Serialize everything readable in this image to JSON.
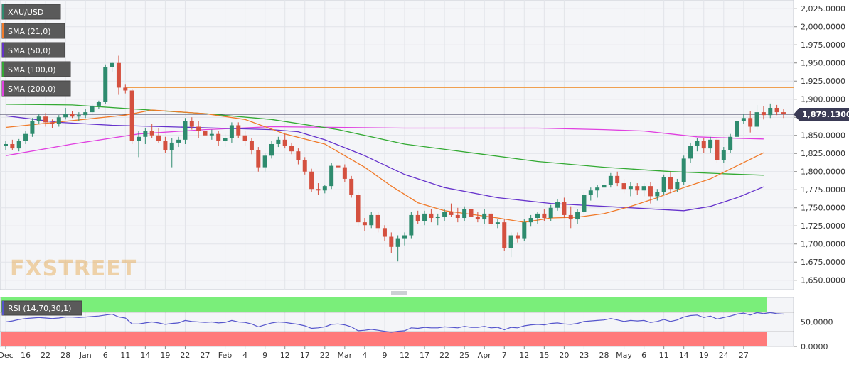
{
  "colors": {
    "up": "#2e8b6e",
    "down": "#d4503f",
    "sma21": "#f07a2a",
    "sma50": "#6633cc",
    "sma100": "#33aa33",
    "sma200": "#e040e0",
    "rsi_line": "#5555cc",
    "overbought_zone": "#7aee7a",
    "oversold_zone": "#ff7a7a",
    "resistance": "#f0a050",
    "price_line": "#333355",
    "price_tag": "#3a3a55",
    "legend_bg": "#5a5a5a"
  },
  "chart_data": [
    {
      "type": "candlestick",
      "symbol": "XAU/USD",
      "legend": [
        "XAU/USD",
        "SMA (21,0)",
        "SMA (50,0)",
        "SMA (100,0)",
        "SMA (200,0)"
      ],
      "ylim": [
        1637,
        2037
      ],
      "yticks": [
        1650,
        1675,
        1700,
        1725,
        1750,
        1775,
        1800,
        1825,
        1850,
        1875,
        1900,
        1925,
        1950,
        1975,
        2000,
        2025
      ],
      "ytick_labels": [
        "1,650.0000",
        "1,675.0000",
        "1,700.0000",
        "1,725.0000",
        "1,750.0000",
        "1,775.0000",
        "1,800.0000",
        "1,825.0000",
        "1,850.0000",
        "1,875.0000",
        "1,900.0000",
        "1,925.0000",
        "1,950.0000",
        "1,975.0000",
        "2,000.0000",
        "2,025.0000"
      ],
      "current_price": 1879.13,
      "current_price_label": "1,879.1300",
      "resistance_level": 1916,
      "candles": [
        [
          1836,
          1842,
          1830,
          1838
        ],
        [
          1838,
          1844,
          1830,
          1832
        ],
        [
          1832,
          1845,
          1828,
          1842
        ],
        [
          1842,
          1856,
          1838,
          1852
        ],
        [
          1852,
          1874,
          1848,
          1870
        ],
        [
          1870,
          1880,
          1866,
          1876
        ],
        [
          1876,
          1881,
          1862,
          1868
        ],
        [
          1868,
          1872,
          1860,
          1866
        ],
        [
          1866,
          1878,
          1862,
          1875
        ],
        [
          1875,
          1888,
          1872,
          1880
        ],
        [
          1880,
          1884,
          1874,
          1876
        ],
        [
          1876,
          1882,
          1870,
          1878
        ],
        [
          1878,
          1886,
          1874,
          1882
        ],
        [
          1882,
          1894,
          1878,
          1891
        ],
        [
          1891,
          1898,
          1886,
          1896
        ],
        [
          1896,
          1948,
          1893,
          1944
        ],
        [
          1944,
          1952,
          1938,
          1950
        ],
        [
          1950,
          1960,
          1906,
          1916
        ],
        [
          1916,
          1920,
          1908,
          1912
        ],
        [
          1912,
          1914,
          1838,
          1842
        ],
        [
          1842,
          1856,
          1820,
          1848
        ],
        [
          1848,
          1860,
          1838,
          1856
        ],
        [
          1856,
          1866,
          1846,
          1850
        ],
        [
          1850,
          1860,
          1840,
          1842
        ],
        [
          1842,
          1848,
          1826,
          1830
        ],
        [
          1830,
          1846,
          1806,
          1840
        ],
        [
          1840,
          1848,
          1834,
          1844
        ],
        [
          1844,
          1874,
          1838,
          1870
        ],
        [
          1870,
          1875,
          1858,
          1862
        ],
        [
          1862,
          1870,
          1846,
          1856
        ],
        [
          1856,
          1862,
          1846,
          1850
        ],
        [
          1850,
          1858,
          1844,
          1852
        ],
        [
          1852,
          1856,
          1836,
          1842
        ],
        [
          1842,
          1852,
          1834,
          1846
        ],
        [
          1846,
          1868,
          1840,
          1864
        ],
        [
          1864,
          1868,
          1846,
          1850
        ],
        [
          1850,
          1856,
          1836,
          1842
        ],
        [
          1842,
          1846,
          1824,
          1830
        ],
        [
          1830,
          1834,
          1800,
          1806
        ],
        [
          1806,
          1826,
          1800,
          1822
        ],
        [
          1822,
          1842,
          1818,
          1838
        ],
        [
          1838,
          1848,
          1834,
          1844
        ],
        [
          1844,
          1852,
          1832,
          1836
        ],
        [
          1836,
          1840,
          1824,
          1828
        ],
        [
          1828,
          1832,
          1810,
          1816
        ],
        [
          1816,
          1820,
          1796,
          1800
        ],
        [
          1800,
          1804,
          1772,
          1776
        ],
        [
          1776,
          1784,
          1768,
          1774
        ],
        [
          1774,
          1782,
          1770,
          1780
        ],
        [
          1780,
          1812,
          1776,
          1808
        ],
        [
          1808,
          1814,
          1800,
          1806
        ],
        [
          1806,
          1810,
          1786,
          1790
        ],
        [
          1790,
          1794,
          1764,
          1768
        ],
        [
          1768,
          1772,
          1724,
          1730
        ],
        [
          1730,
          1736,
          1718,
          1726
        ],
        [
          1726,
          1744,
          1722,
          1740
        ],
        [
          1740,
          1744,
          1716,
          1722
        ],
        [
          1722,
          1726,
          1704,
          1710
        ],
        [
          1710,
          1716,
          1688,
          1696
        ],
        [
          1696,
          1712,
          1676,
          1708
        ],
        [
          1708,
          1716,
          1698,
          1712
        ],
        [
          1712,
          1744,
          1708,
          1740
        ],
        [
          1740,
          1746,
          1728,
          1732
        ],
        [
          1732,
          1746,
          1726,
          1742
        ],
        [
          1742,
          1748,
          1730,
          1736
        ],
        [
          1736,
          1742,
          1726,
          1738
        ],
        [
          1738,
          1748,
          1732,
          1744
        ],
        [
          1744,
          1756,
          1738,
          1740
        ],
        [
          1740,
          1750,
          1730,
          1736
        ],
        [
          1736,
          1752,
          1732,
          1748
        ],
        [
          1748,
          1752,
          1734,
          1738
        ],
        [
          1738,
          1744,
          1730,
          1734
        ],
        [
          1734,
          1748,
          1728,
          1742
        ],
        [
          1742,
          1746,
          1724,
          1728
        ],
        [
          1728,
          1734,
          1722,
          1730
        ],
        [
          1730,
          1734,
          1690,
          1694
        ],
        [
          1694,
          1716,
          1682,
          1712
        ],
        [
          1712,
          1716,
          1702,
          1708
        ],
        [
          1708,
          1734,
          1704,
          1730
        ],
        [
          1730,
          1740,
          1724,
          1736
        ],
        [
          1736,
          1744,
          1728,
          1742
        ],
        [
          1742,
          1748,
          1732,
          1736
        ],
        [
          1736,
          1754,
          1732,
          1750
        ],
        [
          1750,
          1762,
          1746,
          1758
        ],
        [
          1758,
          1764,
          1736,
          1740
        ],
        [
          1740,
          1752,
          1722,
          1734
        ],
        [
          1734,
          1748,
          1728,
          1744
        ],
        [
          1744,
          1772,
          1740,
          1768
        ],
        [
          1768,
          1778,
          1760,
          1774
        ],
        [
          1774,
          1782,
          1764,
          1778
        ],
        [
          1778,
          1788,
          1770,
          1782
        ],
        [
          1782,
          1798,
          1778,
          1794
        ],
        [
          1794,
          1800,
          1780,
          1784
        ],
        [
          1784,
          1790,
          1770,
          1776
        ],
        [
          1776,
          1786,
          1766,
          1780
        ],
        [
          1780,
          1784,
          1768,
          1774
        ],
        [
          1774,
          1784,
          1766,
          1780
        ],
        [
          1780,
          1786,
          1756,
          1766
        ],
        [
          1766,
          1776,
          1760,
          1772
        ],
        [
          1772,
          1796,
          1768,
          1792
        ],
        [
          1792,
          1800,
          1770,
          1776
        ],
        [
          1776,
          1790,
          1772,
          1786
        ],
        [
          1786,
          1822,
          1782,
          1818
        ],
        [
          1818,
          1840,
          1812,
          1836
        ],
        [
          1836,
          1846,
          1828,
          1842
        ],
        [
          1842,
          1846,
          1826,
          1832
        ],
        [
          1832,
          1848,
          1826,
          1844
        ],
        [
          1844,
          1846,
          1812,
          1816
        ],
        [
          1816,
          1834,
          1812,
          1830
        ],
        [
          1830,
          1852,
          1826,
          1848
        ],
        [
          1848,
          1874,
          1844,
          1870
        ],
        [
          1870,
          1880,
          1866,
          1874
        ],
        [
          1874,
          1884,
          1854,
          1862
        ],
        [
          1862,
          1892,
          1858,
          1882
        ],
        [
          1882,
          1890,
          1872,
          1878
        ],
        [
          1878,
          1894,
          1874,
          1888
        ],
        [
          1888,
          1892,
          1878,
          1882
        ],
        [
          1882,
          1886,
          1874,
          1879.13
        ]
      ],
      "sma21": [
        [
          0,
          1861
        ],
        [
          18,
          1878
        ],
        [
          22,
          1885
        ],
        [
          30,
          1880
        ],
        [
          36,
          1872
        ],
        [
          42,
          1852
        ],
        [
          48,
          1838
        ],
        [
          54,
          1806
        ],
        [
          58,
          1780
        ],
        [
          62,
          1757
        ],
        [
          66,
          1746
        ],
        [
          70,
          1741
        ],
        [
          74,
          1736
        ],
        [
          78,
          1730
        ],
        [
          82,
          1736
        ],
        [
          86,
          1737
        ],
        [
          90,
          1742
        ],
        [
          94,
          1752
        ],
        [
          98,
          1764
        ],
        [
          102,
          1778
        ],
        [
          106,
          1790
        ],
        [
          110,
          1808
        ],
        [
          114,
          1826
        ]
      ],
      "sma50": [
        [
          0,
          1877
        ],
        [
          8,
          1868
        ],
        [
          16,
          1864
        ],
        [
          24,
          1862
        ],
        [
          32,
          1860
        ],
        [
          40,
          1858
        ],
        [
          44,
          1855
        ],
        [
          48,
          1844
        ],
        [
          54,
          1822
        ],
        [
          60,
          1796
        ],
        [
          66,
          1778
        ],
        [
          74,
          1764
        ],
        [
          82,
          1756
        ],
        [
          90,
          1752
        ],
        [
          94,
          1750
        ],
        [
          98,
          1748
        ],
        [
          102,
          1746
        ],
        [
          106,
          1752
        ],
        [
          110,
          1764
        ],
        [
          114,
          1779
        ]
      ],
      "sma100": [
        [
          0,
          1893
        ],
        [
          10,
          1892
        ],
        [
          20,
          1886
        ],
        [
          30,
          1880
        ],
        [
          40,
          1872
        ],
        [
          50,
          1858
        ],
        [
          60,
          1838
        ],
        [
          70,
          1826
        ],
        [
          80,
          1814
        ],
        [
          90,
          1806
        ],
        [
          100,
          1800
        ],
        [
          108,
          1797
        ],
        [
          114,
          1795
        ]
      ],
      "sma200": [
        [
          0,
          1822
        ],
        [
          10,
          1838
        ],
        [
          20,
          1852
        ],
        [
          30,
          1858
        ],
        [
          40,
          1862
        ],
        [
          50,
          1861
        ],
        [
          60,
          1860
        ],
        [
          70,
          1860
        ],
        [
          80,
          1860
        ],
        [
          90,
          1858
        ],
        [
          96,
          1856
        ],
        [
          100,
          1852
        ],
        [
          104,
          1848
        ],
        [
          110,
          1846
        ],
        [
          114,
          1845
        ]
      ]
    },
    {
      "type": "line",
      "indicator": "RSI",
      "legend": [
        "RSI (14,70,30,1)"
      ],
      "ylim": [
        0,
        100
      ],
      "yticks": [
        0,
        50
      ],
      "ytick_labels": [
        "0.0000",
        "50.0000"
      ],
      "overbought": 70,
      "oversold": 30,
      "values": [
        50,
        52,
        55,
        57,
        58,
        59,
        58,
        57,
        58,
        60,
        60,
        59,
        60,
        61,
        62,
        64,
        66,
        60,
        58,
        46,
        46,
        48,
        50,
        48,
        45,
        47,
        48,
        53,
        51,
        50,
        49,
        50,
        48,
        49,
        53,
        50,
        49,
        46,
        40,
        44,
        48,
        50,
        49,
        47,
        45,
        42,
        37,
        38,
        40,
        45,
        46,
        44,
        40,
        32,
        33,
        35,
        33,
        31,
        29,
        31,
        32,
        38,
        37,
        39,
        38,
        38,
        40,
        39,
        38,
        41,
        39,
        39,
        41,
        38,
        39,
        34,
        39,
        38,
        42,
        44,
        45,
        44,
        47,
        48,
        46,
        45,
        47,
        51,
        52,
        53,
        54,
        57,
        54,
        51,
        53,
        52,
        53,
        49,
        51,
        55,
        51,
        54,
        60,
        63,
        64,
        59,
        62,
        56,
        59,
        62,
        66,
        68,
        64,
        69,
        67,
        69,
        67,
        66
      ]
    }
  ],
  "x_axis": {
    "labels": [
      {
        "i": 0,
        "text": "Dec"
      },
      {
        "i": 3,
        "text": "16"
      },
      {
        "i": 6,
        "text": "22"
      },
      {
        "i": 9,
        "text": "28"
      },
      {
        "i": 12,
        "text": "Jan"
      },
      {
        "i": 15,
        "text": "6"
      },
      {
        "i": 18,
        "text": "11"
      },
      {
        "i": 21,
        "text": "14"
      },
      {
        "i": 24,
        "text": "19"
      },
      {
        "i": 27,
        "text": "22"
      },
      {
        "i": 30,
        "text": "27"
      },
      {
        "i": 33,
        "text": "Feb"
      },
      {
        "i": 36,
        "text": "4"
      },
      {
        "i": 39,
        "text": "9"
      },
      {
        "i": 42,
        "text": "12"
      },
      {
        "i": 45,
        "text": "17"
      },
      {
        "i": 48,
        "text": "22"
      },
      {
        "i": 51,
        "text": "Mar"
      },
      {
        "i": 54,
        "text": "4"
      },
      {
        "i": 57,
        "text": "9"
      },
      {
        "i": 60,
        "text": "12"
      },
      {
        "i": 63,
        "text": "17"
      },
      {
        "i": 66,
        "text": "22"
      },
      {
        "i": 69,
        "text": "25"
      },
      {
        "i": 72,
        "text": "Apr"
      },
      {
        "i": 75,
        "text": "7"
      },
      {
        "i": 78,
        "text": "12"
      },
      {
        "i": 81,
        "text": "15"
      },
      {
        "i": 84,
        "text": "20"
      },
      {
        "i": 87,
        "text": "23"
      },
      {
        "i": 90,
        "text": "28"
      },
      {
        "i": 93,
        "text": "May"
      },
      {
        "i": 96,
        "text": "6"
      },
      {
        "i": 99,
        "text": "11"
      },
      {
        "i": 102,
        "text": "14"
      },
      {
        "i": 105,
        "text": "19"
      },
      {
        "i": 108,
        "text": "24"
      },
      {
        "i": 111,
        "text": "27"
      }
    ]
  },
  "watermark": "FXSTREET"
}
